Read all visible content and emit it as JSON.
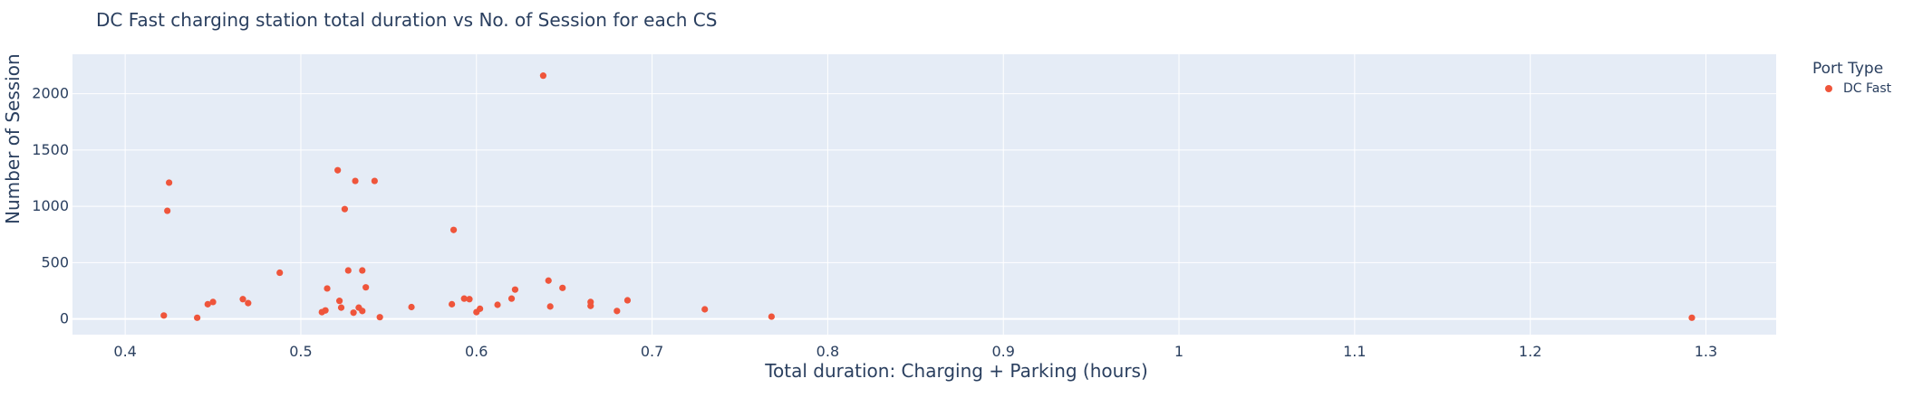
{
  "chart_data": {
    "type": "scatter",
    "title": "DC Fast charging station total duration vs No. of Session for each CS",
    "xlabel": "Total duration: Charging + Parking (hours)",
    "ylabel": "Number of Session",
    "xlim": [
      0.37,
      1.34
    ],
    "ylim": [
      -140,
      2350
    ],
    "x_ticks": [
      0.4,
      0.5,
      0.6,
      0.7,
      0.8,
      0.9,
      1,
      1.1,
      1.2,
      1.3
    ],
    "x_tick_labels": [
      "0.4",
      "0.5",
      "0.6",
      "0.7",
      "0.8",
      "0.9",
      "1",
      "1.1",
      "1.2",
      "1.3"
    ],
    "y_ticks": [
      0,
      500,
      1000,
      1500,
      2000
    ],
    "y_tick_labels": [
      "0",
      "500",
      "1000",
      "1500",
      "2000"
    ],
    "grid": true,
    "legend": {
      "title": "Port Type",
      "placement": "top-right"
    },
    "series": [
      {
        "name": "DC Fast",
        "color": "#ef553b",
        "x": [
          0.422,
          0.424,
          0.425,
          0.441,
          0.447,
          0.45,
          0.467,
          0.47,
          0.488,
          0.512,
          0.514,
          0.515,
          0.521,
          0.522,
          0.523,
          0.525,
          0.527,
          0.53,
          0.531,
          0.533,
          0.535,
          0.535,
          0.537,
          0.542,
          0.545,
          0.563,
          0.586,
          0.587,
          0.593,
          0.596,
          0.6,
          0.602,
          0.612,
          0.62,
          0.622,
          0.638,
          0.641,
          0.642,
          0.649,
          0.665,
          0.665,
          0.68,
          0.686,
          0.73,
          0.768,
          1.292
        ],
        "y": [
          30,
          960,
          1210,
          10,
          130,
          150,
          175,
          140,
          410,
          60,
          75,
          270,
          1320,
          160,
          100,
          975,
          430,
          55,
          1225,
          100,
          70,
          430,
          280,
          1225,
          15,
          105,
          130,
          790,
          180,
          175,
          60,
          90,
          125,
          180,
          260,
          2160,
          340,
          110,
          275,
          115,
          150,
          70,
          165,
          85,
          20,
          10
        ]
      }
    ]
  }
}
